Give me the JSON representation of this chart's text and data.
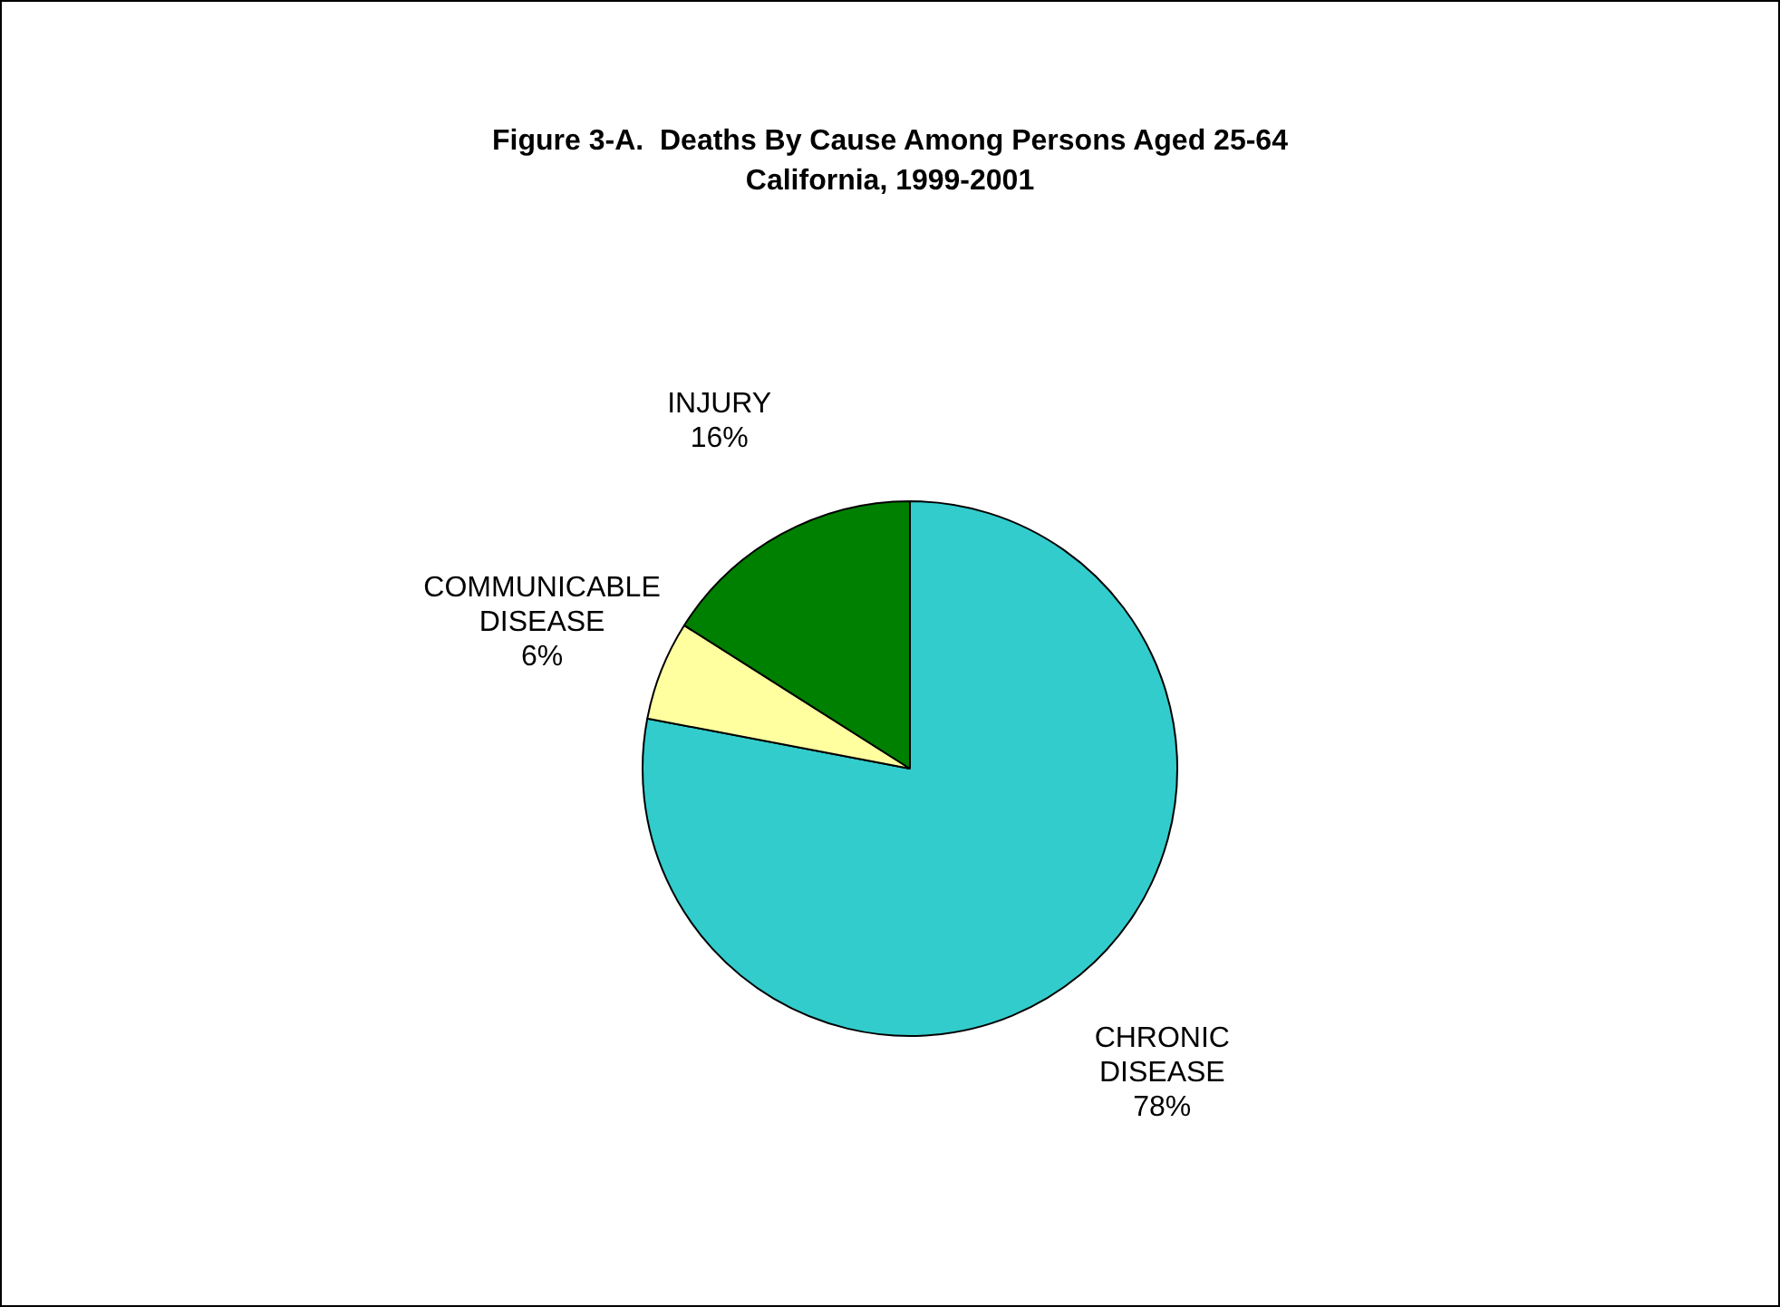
{
  "chart_data": {
    "type": "pie",
    "title": "Figure 3-A.  Deaths By Cause Among Persons Aged 25-64",
    "subtitle": "California, 1999-2001",
    "categories": [
      "CHRONIC DISEASE",
      "COMMUNICABLE DISEASE",
      "INJURY"
    ],
    "values": [
      78,
      6,
      16
    ],
    "value_labels": [
      "78%",
      "6%",
      "16%"
    ],
    "colors": [
      "#33cccc",
      "#ffffa0",
      "#008000"
    ],
    "legend": false
  }
}
